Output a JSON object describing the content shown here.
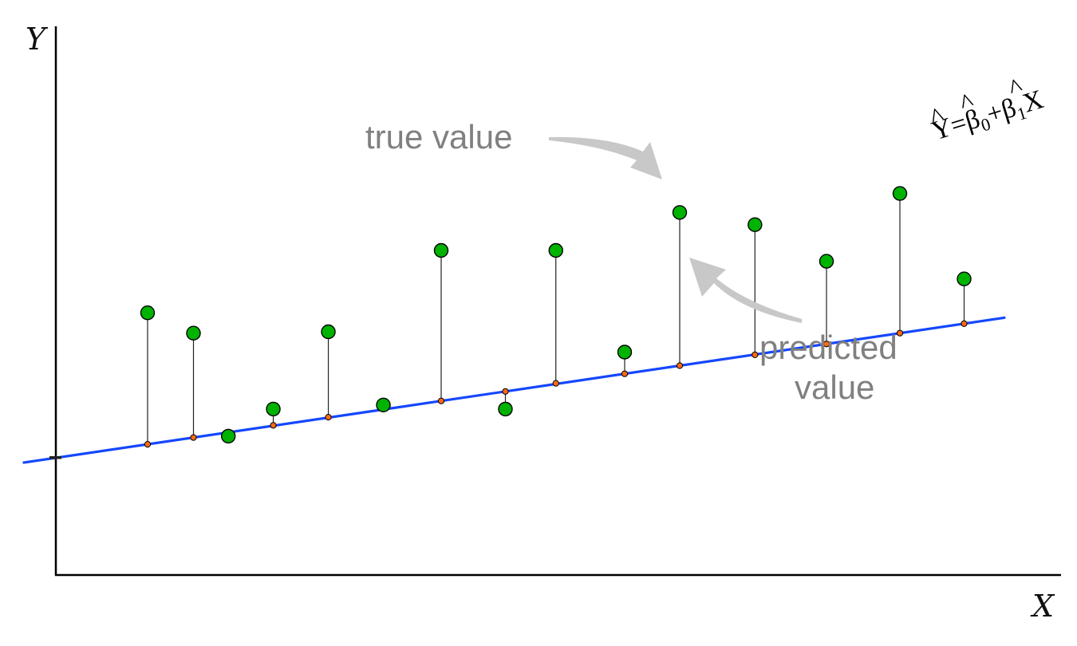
{
  "axes": {
    "x_label": "X",
    "y_label": "Y"
  },
  "equation": {
    "y": "Y",
    "y_hat_mark": "^",
    "equals": "=",
    "beta": "β",
    "beta_hat_mark": "^",
    "sub0": "0",
    "plus": "+",
    "sub1": "1",
    "x": "X"
  },
  "annotations": {
    "true_value": "true value",
    "predicted_value_line1": "predicted",
    "predicted_value_line2": "value"
  },
  "colors": {
    "regression_line": "#1447ff",
    "true_point": "#00b300",
    "predicted_point": "#ff6a13",
    "residual": "#222222",
    "axis": "#000000",
    "callout": "#808080",
    "callout_arrow": "#c8c8c8"
  },
  "chart_data": {
    "type": "scatter",
    "regression": {
      "intercept": 0.87,
      "slope": 0.1
    },
    "x": [
      1,
      1.5,
      1.88,
      2.37,
      2.97,
      3.57,
      4.2,
      4.9,
      5.45,
      6.2,
      6.8,
      7.62,
      8.4,
      9.2,
      9.9
    ],
    "true_values": [
      1.94,
      1.79,
      1.03,
      1.23,
      1.8,
      1.26,
      2.4,
      1.23,
      2.4,
      1.65,
      2.68,
      2.59,
      2.32,
      2.82,
      2.19
    ],
    "predicted_values": [
      0.97,
      1.02,
      1.06,
      1.11,
      1.17,
      1.23,
      1.29,
      1.36,
      1.42,
      1.49,
      1.55,
      1.63,
      1.71,
      1.79,
      1.86
    ]
  }
}
